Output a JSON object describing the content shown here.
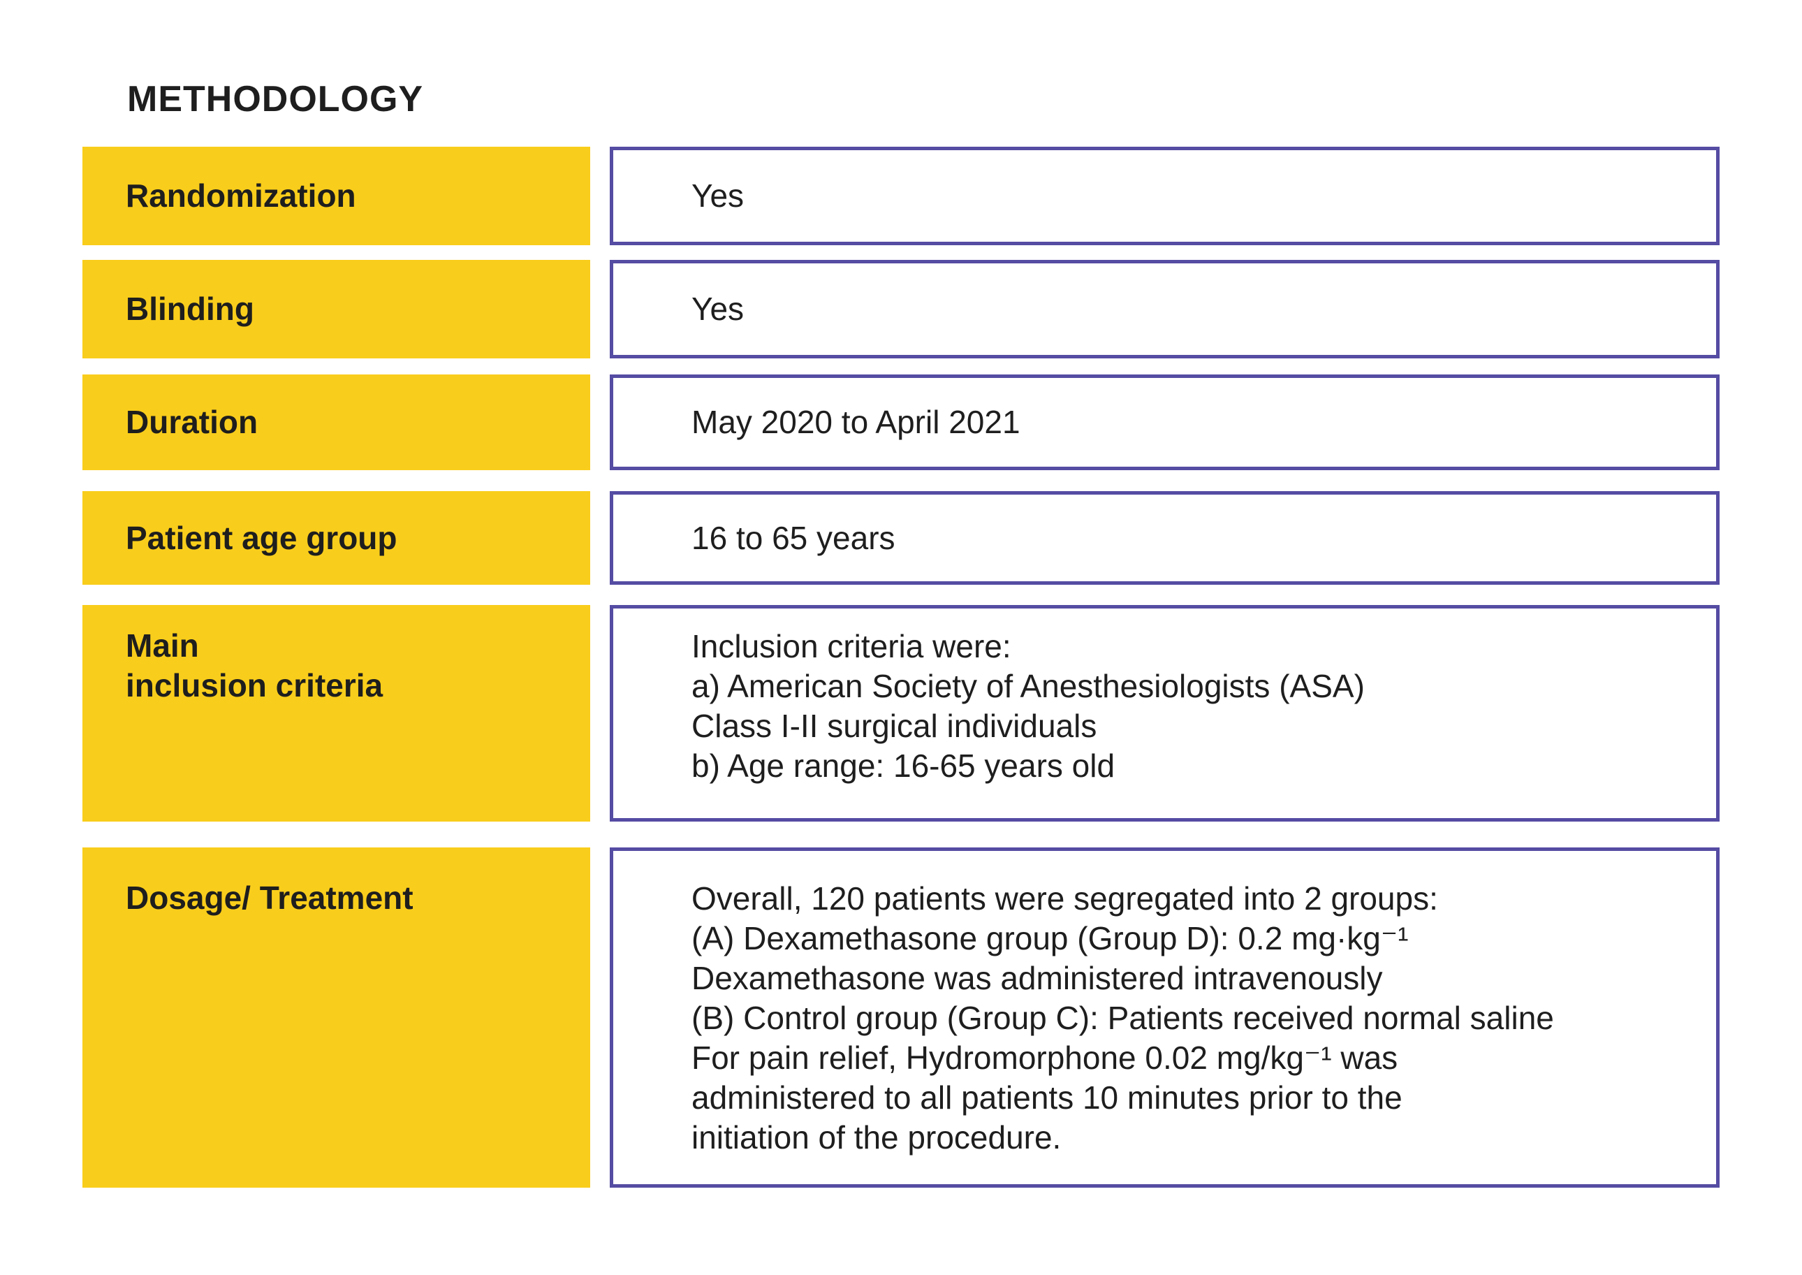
{
  "title": "METHODOLOGY",
  "colors": {
    "yellow": "#F9CD1B",
    "purple": "#554CA3",
    "ink": "#1E1E1E",
    "bg": "#FFFFFF"
  },
  "table": {
    "rows": [
      {
        "label": "Randomization",
        "value": "Yes"
      },
      {
        "label": "Blinding",
        "value": "Yes"
      },
      {
        "label": "Duration",
        "value": "May 2020 to April 2021"
      },
      {
        "label": "Patient age group",
        "value": "16 to 65 years"
      },
      {
        "label": "Main\ninclusion criteria",
        "value": "Inclusion criteria were:\na) American Society of Anesthesiologists (ASA)\nClass I-II surgical individuals\nb) Age range: 16-65 years old"
      },
      {
        "label": "Dosage/ Treatment",
        "value": "Overall, 120 patients were segregated into 2 groups:\n(A) Dexamethasone group (Group D): 0.2 mg·kg⁻¹\nDexamethasone was administered intravenously\n(B) Control group (Group C): Patients received normal saline\nFor pain relief, Hydromorphone 0.02 mg/kg⁻¹ was\nadministered to all patients 10 minutes prior to the\ninitiation of the procedure."
      }
    ]
  }
}
